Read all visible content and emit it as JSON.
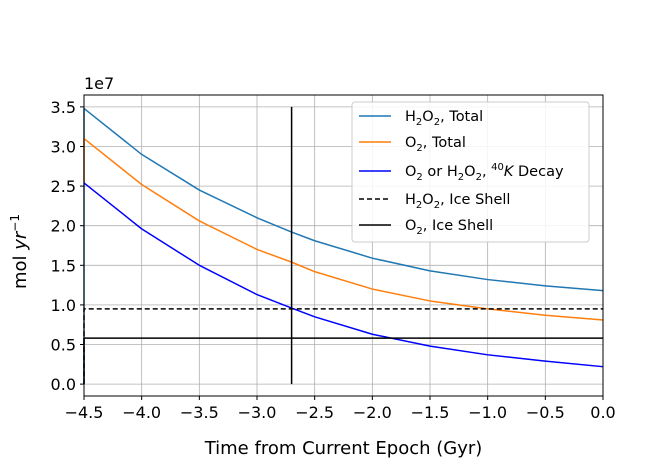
{
  "chart_data": {
    "type": "line",
    "xlabel": "Time from Current Epoch (Gyr)",
    "ylabel": "mol yr",
    "ylabel_sup": "−1",
    "offset_text": "1e7",
    "xlim": [
      -4.5,
      0.0
    ],
    "ylim": [
      -0.15,
      3.65
    ],
    "x_ticks": [
      -4.5,
      -4.0,
      -3.5,
      -3.0,
      -2.5,
      -2.0,
      -1.5,
      -1.0,
      -0.5,
      0.0
    ],
    "x_tick_labels": [
      "−4.5",
      "−4.0",
      "−3.5",
      "−3.0",
      "−2.5",
      "−2.0",
      "−1.5",
      "−1.0",
      "−0.5",
      "0.0"
    ],
    "y_ticks": [
      0.0,
      0.5,
      1.0,
      1.5,
      2.0,
      2.5,
      3.0,
      3.5
    ],
    "y_tick_labels": [
      "0.0",
      "0.5",
      "1.0",
      "1.5",
      "2.0",
      "2.5",
      "3.0",
      "3.5"
    ],
    "grid": true,
    "legend_position": "top-right",
    "series": [
      {
        "name_parts": [
          "H",
          "2",
          "O",
          "2",
          ", Total"
        ],
        "color": "#1f77b4",
        "style": "solid",
        "x": [
          -4.5,
          -4.0,
          -3.5,
          -3.0,
          -2.7,
          -2.5,
          -2.0,
          -1.5,
          -1.0,
          -0.5,
          0.0
        ],
        "y": [
          3.48,
          2.9,
          2.45,
          2.1,
          1.92,
          1.81,
          1.59,
          1.43,
          1.32,
          1.24,
          1.18
        ],
        "start_from": 0.0
      },
      {
        "name_parts": [
          "O",
          "2",
          ", Total"
        ],
        "color": "#ff7f0e",
        "style": "solid",
        "x": [
          -4.5,
          -4.0,
          -3.5,
          -3.0,
          -2.7,
          -2.5,
          -2.0,
          -1.5,
          -1.0,
          -0.5,
          0.0
        ],
        "y": [
          3.1,
          2.52,
          2.06,
          1.7,
          1.54,
          1.42,
          1.2,
          1.05,
          0.95,
          0.87,
          0.81
        ],
        "start_from": 2.55
      },
      {
        "name_parts": [
          "O",
          "2",
          " or H",
          "2",
          "O",
          "2",
          ", ",
          "40",
          "K",
          " Decay"
        ],
        "color": "#0000ff",
        "style": "solid",
        "x": [
          -4.5,
          -4.0,
          -3.5,
          -3.0,
          -2.7,
          -2.5,
          -2.0,
          -1.5,
          -1.0,
          -0.5,
          0.0
        ],
        "y": [
          2.54,
          1.96,
          1.5,
          1.13,
          0.96,
          0.85,
          0.63,
          0.48,
          0.37,
          0.29,
          0.22
        ],
        "start_from": null
      },
      {
        "name_parts": [
          "H",
          "2",
          "O",
          "2",
          ", Ice Shell"
        ],
        "color": "#000000",
        "style": "dashed",
        "x": [
          -4.5,
          0.0
        ],
        "y": [
          0.95,
          0.95
        ],
        "start_from": 0.0
      },
      {
        "name_parts": [
          "O",
          "2",
          ", Ice Shell"
        ],
        "color": "#000000",
        "style": "solid",
        "x": [
          -4.5,
          0.0
        ],
        "y": [
          0.58,
          0.58
        ],
        "start_from": 0.0
      }
    ],
    "vertical_line": {
      "x": -2.7,
      "y_from": 0.0,
      "y_to": 3.5,
      "color": "#000000"
    }
  }
}
